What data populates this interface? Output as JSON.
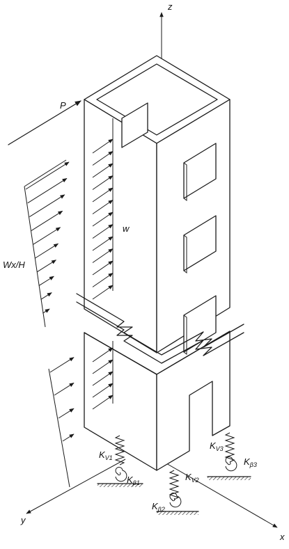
{
  "axes": {
    "z": "z",
    "y": "y",
    "x": "x"
  },
  "loads": {
    "point_load": "P",
    "distributed_load": "w",
    "triangular_load": "Wx/H"
  },
  "supports": [
    {
      "spring_symbol": "K",
      "spring_sub": "V1",
      "rot_symbol": "K",
      "rot_sub": "β1"
    },
    {
      "spring_symbol": "K",
      "spring_sub": "V2",
      "rot_symbol": "K",
      "rot_sub": "β2"
    },
    {
      "spring_symbol": "K",
      "spring_sub": "V3",
      "rot_symbol": "K",
      "rot_sub": "β3"
    }
  ]
}
